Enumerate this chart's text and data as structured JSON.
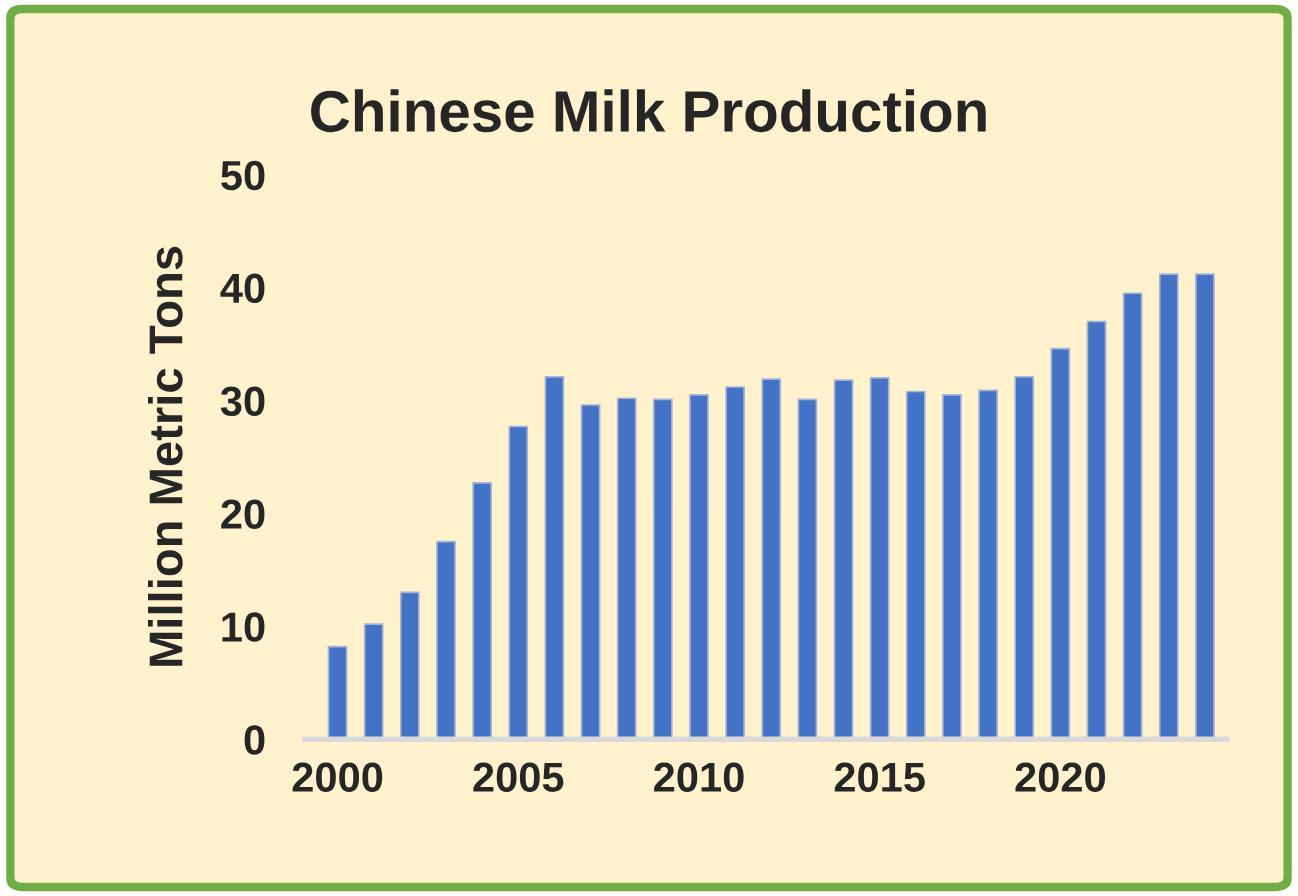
{
  "chart_data": {
    "type": "bar",
    "title": "Chinese Milk Production",
    "ylabel": "Million Metric Tons",
    "categories": [
      "2000",
      null,
      null,
      null,
      null,
      "2005",
      null,
      null,
      null,
      null,
      "2010",
      null,
      null,
      null,
      null,
      "2015",
      null,
      null,
      null,
      null,
      "2020",
      null,
      null,
      null,
      null
    ],
    "values": [
      8.2,
      10.2,
      13.0,
      17.5,
      22.7,
      27.7,
      32.1,
      29.6,
      30.2,
      30.1,
      30.5,
      31.2,
      31.9,
      30.1,
      31.8,
      32.0,
      30.8,
      30.5,
      30.9,
      32.1,
      34.6,
      37.0,
      39.5,
      41.2,
      41.2
    ],
    "color": "#4472c4",
    "ylim": [
      0,
      50
    ],
    "yticks": [
      0,
      10,
      20,
      30,
      40,
      50
    ],
    "grid": false
  }
}
